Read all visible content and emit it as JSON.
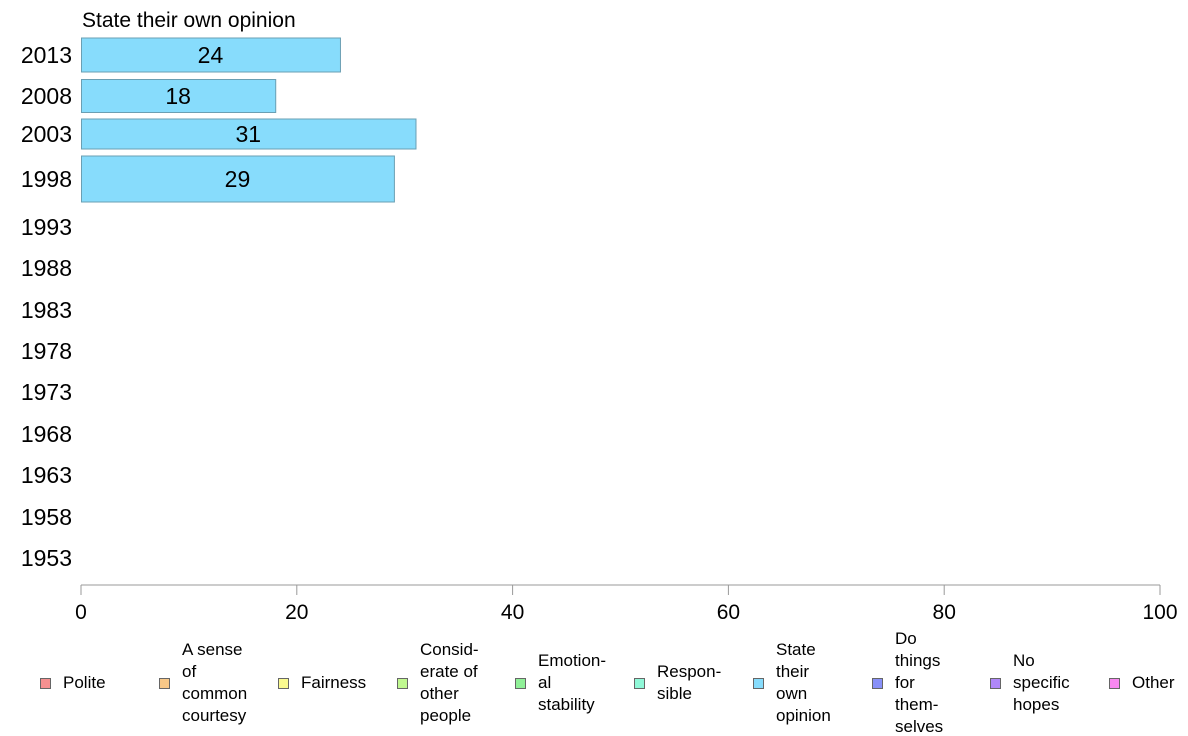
{
  "chart_data": {
    "type": "bar",
    "orientation": "horizontal",
    "title": "State their own opinion",
    "categories": [
      "2013",
      "2008",
      "2003",
      "1998",
      "1993",
      "1988",
      "1983",
      "1978",
      "1973",
      "1968",
      "1963",
      "1958",
      "1953"
    ],
    "series": [
      {
        "name": "State their own opinion",
        "values": [
          24,
          18,
          31,
          29,
          null,
          null,
          null,
          null,
          null,
          null,
          null,
          null,
          null
        ]
      }
    ],
    "xlim": [
      0,
      100
    ],
    "xticks": [
      "0",
      "20",
      "40",
      "60",
      "80",
      "100"
    ],
    "xlabel": "",
    "ylabel": "",
    "grid": false,
    "legend_position": "bottom",
    "bar_color": "#87dcfc",
    "bar_border_color": "#6a9fb3"
  },
  "legend": [
    {
      "label": "Polite",
      "color": "#f59090"
    },
    {
      "label": "A sense\nof\ncommon\ncourtesy",
      "color": "#f8c888"
    },
    {
      "label": "Fairness",
      "color": "#fafa90"
    },
    {
      "label": "Consid-\nerate of\nother\npeople",
      "color": "#c0f890"
    },
    {
      "label": "Emotion-\nal\nstability",
      "color": "#90f098"
    },
    {
      "label": "Respon-\nsible",
      "color": "#90f8d8"
    },
    {
      "label": "State\ntheir\nown\nopinion",
      "color": "#87dcfc"
    },
    {
      "label": "Do\nthings\nfor\nthem-\nselves",
      "color": "#8890f8"
    },
    {
      "label": "No\nspecific\nhopes",
      "color": "#b088f8"
    },
    {
      "label": "Other",
      "color": "#f888f0"
    }
  ]
}
